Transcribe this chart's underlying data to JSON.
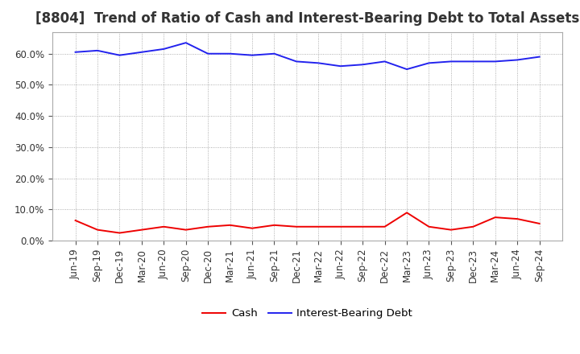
{
  "title": "[8804]  Trend of Ratio of Cash and Interest-Bearing Debt to Total Assets",
  "labels": [
    "Jun-19",
    "Sep-19",
    "Dec-19",
    "Mar-20",
    "Jun-20",
    "Sep-20",
    "Dec-20",
    "Mar-21",
    "Jun-21",
    "Sep-21",
    "Dec-21",
    "Mar-22",
    "Jun-22",
    "Sep-22",
    "Dec-22",
    "Mar-23",
    "Jun-23",
    "Sep-23",
    "Dec-23",
    "Mar-24",
    "Jun-24",
    "Sep-24"
  ],
  "cash": [
    6.5,
    3.5,
    2.5,
    3.5,
    4.5,
    3.5,
    4.5,
    5.0,
    4.0,
    5.0,
    4.5,
    4.5,
    4.5,
    4.5,
    4.5,
    9.0,
    4.5,
    3.5,
    4.5,
    7.5,
    7.0,
    5.5
  ],
  "interest_bearing_debt": [
    60.5,
    61.0,
    59.5,
    60.5,
    61.5,
    63.5,
    60.0,
    60.0,
    59.5,
    60.0,
    57.5,
    57.0,
    56.0,
    56.5,
    57.5,
    55.0,
    57.0,
    57.5,
    57.5,
    57.5,
    58.0,
    59.0
  ],
  "cash_color": "#ee0000",
  "debt_color": "#2222ee",
  "background_color": "#ffffff",
  "plot_background_color": "#ffffff",
  "grid_color": "#999999",
  "yticks": [
    0.0,
    10.0,
    20.0,
    30.0,
    40.0,
    50.0,
    60.0
  ],
  "ylim": [
    0.0,
    67.0
  ],
  "legend_labels": [
    "Cash",
    "Interest-Bearing Debt"
  ],
  "title_fontsize": 12,
  "tick_fontsize": 8.5,
  "legend_fontsize": 9.5,
  "title_color": "#333333"
}
